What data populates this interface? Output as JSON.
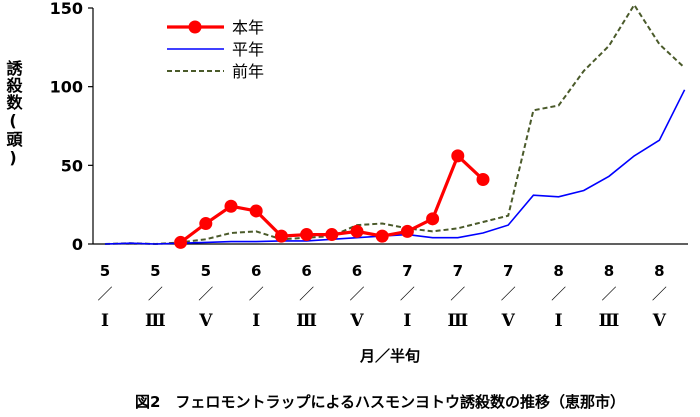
{
  "chart_data": {
    "type": "line",
    "caption": "図2　フェロモントラップによるハスモンヨトウ誘殺数の推移（恵那市）",
    "xlabel": "月／半旬",
    "ylabel": "誘殺数(頭)",
    "ylim": [
      0,
      150
    ],
    "yticks": [
      0,
      50,
      100,
      150
    ],
    "x_tick_labels": [
      {
        "month": "5",
        "sep": "／",
        "half": "Ⅰ"
      },
      {
        "month": "5",
        "sep": "／",
        "half": "Ⅲ"
      },
      {
        "month": "5",
        "sep": "／",
        "half": "Ⅴ"
      },
      {
        "month": "6",
        "sep": "／",
        "half": "Ⅰ"
      },
      {
        "month": "6",
        "sep": "／",
        "half": "Ⅲ"
      },
      {
        "month": "6",
        "sep": "／",
        "half": "Ⅴ"
      },
      {
        "month": "7",
        "sep": "／",
        "half": "Ⅰ"
      },
      {
        "month": "7",
        "sep": "／",
        "half": "Ⅲ"
      },
      {
        "month": "7",
        "sep": "／",
        "half": "Ⅴ"
      },
      {
        "month": "8",
        "sep": "／",
        "half": "Ⅰ"
      },
      {
        "month": "8",
        "sep": "／",
        "half": "Ⅲ"
      },
      {
        "month": "8",
        "sep": "／",
        "half": "Ⅴ"
      }
    ],
    "series": [
      {
        "name": "本年",
        "color": "#ff0000",
        "style": "solid-marker",
        "x": [
          3,
          4,
          5,
          6,
          7,
          8,
          9,
          10,
          11,
          12,
          13,
          14,
          15
        ],
        "values": [
          1,
          13,
          24,
          21,
          5,
          6,
          6,
          8,
          5,
          8,
          16,
          56,
          41
        ]
      },
      {
        "name": "平年",
        "color": "#0000ff",
        "style": "solid",
        "x": [
          0,
          1,
          2,
          3,
          4,
          5,
          6,
          7,
          8,
          9,
          10,
          11,
          12,
          13,
          14,
          15,
          16,
          17,
          18,
          19,
          20,
          21,
          22,
          23
        ],
        "values": [
          0,
          0.5,
          0,
          0.5,
          1,
          1.5,
          1.5,
          2,
          2,
          3,
          4,
          5,
          6,
          4,
          4,
          7,
          12,
          31,
          30,
          34,
          43,
          56,
          66,
          98
        ]
      },
      {
        "name": "前年",
        "color": "#4a5a2a",
        "style": "dashed",
        "x": [
          0,
          1,
          2,
          3,
          4,
          5,
          6,
          7,
          8,
          9,
          10,
          11,
          12,
          13,
          14,
          15,
          16,
          17,
          18,
          19,
          20,
          21,
          22,
          23
        ],
        "values": [
          0,
          0.5,
          0,
          1,
          3,
          7,
          8,
          3,
          4,
          5,
          12,
          13,
          10,
          8,
          10,
          14,
          18,
          85,
          88,
          110,
          126,
          152,
          127,
          112
        ]
      }
    ],
    "legend_position": "top-left"
  }
}
